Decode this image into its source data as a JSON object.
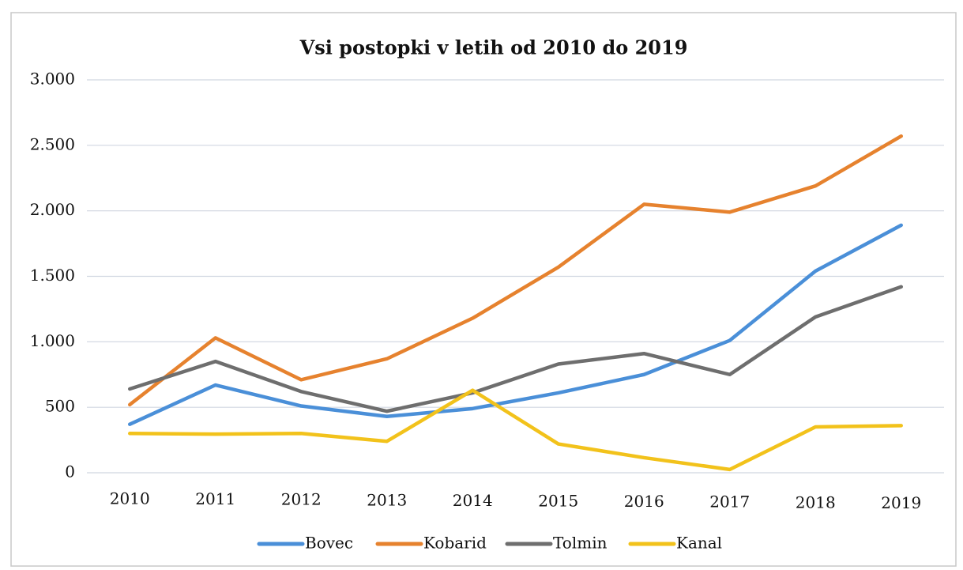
{
  "chart_data": {
    "type": "line",
    "title": "Vsi postopki v letih od 2010 do 2019",
    "categories": [
      "2010",
      "2011",
      "2012",
      "2013",
      "2014",
      "2015",
      "2016",
      "2017",
      "2018",
      "2019"
    ],
    "series": [
      {
        "name": "Bovec",
        "color": "#4a8fd8",
        "values": [
          370,
          670,
          510,
          430,
          490,
          610,
          750,
          1010,
          1540,
          1890
        ]
      },
      {
        "name": "Kobarid",
        "color": "#e6822e",
        "values": [
          520,
          1030,
          710,
          870,
          1180,
          1570,
          2050,
          1990,
          2190,
          2570
        ]
      },
      {
        "name": "Tolmin",
        "color": "#6e6e6e",
        "values": [
          640,
          850,
          620,
          470,
          610,
          830,
          910,
          750,
          1190,
          1420
        ]
      },
      {
        "name": "Kanal",
        "color": "#f2c21b",
        "values": [
          300,
          295,
          300,
          240,
          630,
          220,
          115,
          25,
          350,
          360
        ]
      }
    ],
    "ylim": [
      0,
      3000
    ],
    "yticks": [
      0,
      500,
      {
        "value": 1000,
        "label": "1.000"
      },
      {
        "value": 1500,
        "label": "1.500"
      },
      {
        "value": 2000,
        "label": "2.000"
      },
      {
        "value": 2500,
        "label": "2.500"
      },
      {
        "value": 3000,
        "label": "3.000"
      }
    ],
    "grid": true,
    "legend": "bottom"
  }
}
